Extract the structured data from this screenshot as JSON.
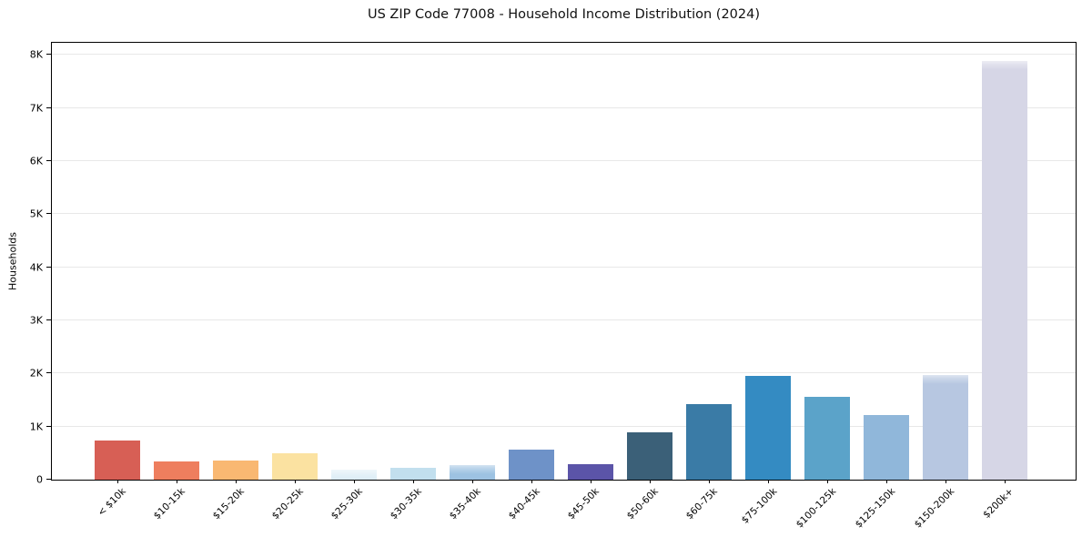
{
  "figure": {
    "background": "#ffffff"
  },
  "chart_data": {
    "type": "bar",
    "title": "US ZIP Code 77008 - Household Income Distribution (2024)",
    "xlabel": "",
    "ylabel": "Households",
    "categories": [
      "< $10k",
      "$10-15k",
      "$15-20k",
      "$20-25k",
      "$25-30k",
      "$30-35k",
      "$35-40k",
      "$40-45k",
      "$45-50k",
      "$50-60k",
      "$60-75k",
      "$75-100k",
      "$100-125k",
      "$125-150k",
      "$150-200k",
      "$200k+"
    ],
    "values": [
      740,
      350,
      360,
      490,
      190,
      220,
      280,
      560,
      290,
      890,
      1430,
      1950,
      1560,
      1220,
      1980,
      7890
    ],
    "bar_colors": [
      "#d75f55",
      "#ee7e5e",
      "#f9b872",
      "#fbe2a1",
      "#ddedf6",
      "#c2dfee",
      "#9dc2e2",
      "#6e92c8",
      "#5b54a8",
      "#3b6078",
      "#3a7ba6",
      "#348bc2",
      "#5ba3c9",
      "#90b7da",
      "#b7c7e1",
      "#d6d6e6"
    ],
    "ytick_values": [
      0,
      1000,
      2000,
      3000,
      4000,
      5000,
      6000,
      7000,
      8000
    ],
    "ytick_labels": [
      "0",
      "1K",
      "2K",
      "3K",
      "4K",
      "5K",
      "6K",
      "7K",
      "8K"
    ],
    "ylim": [
      0,
      8230
    ],
    "grid": "horizontal",
    "gridline_color": "#e8e8e8",
    "axis_color": "#000000",
    "legend": null,
    "soft_top_bar_indices": [
      4,
      6,
      14,
      15
    ]
  }
}
